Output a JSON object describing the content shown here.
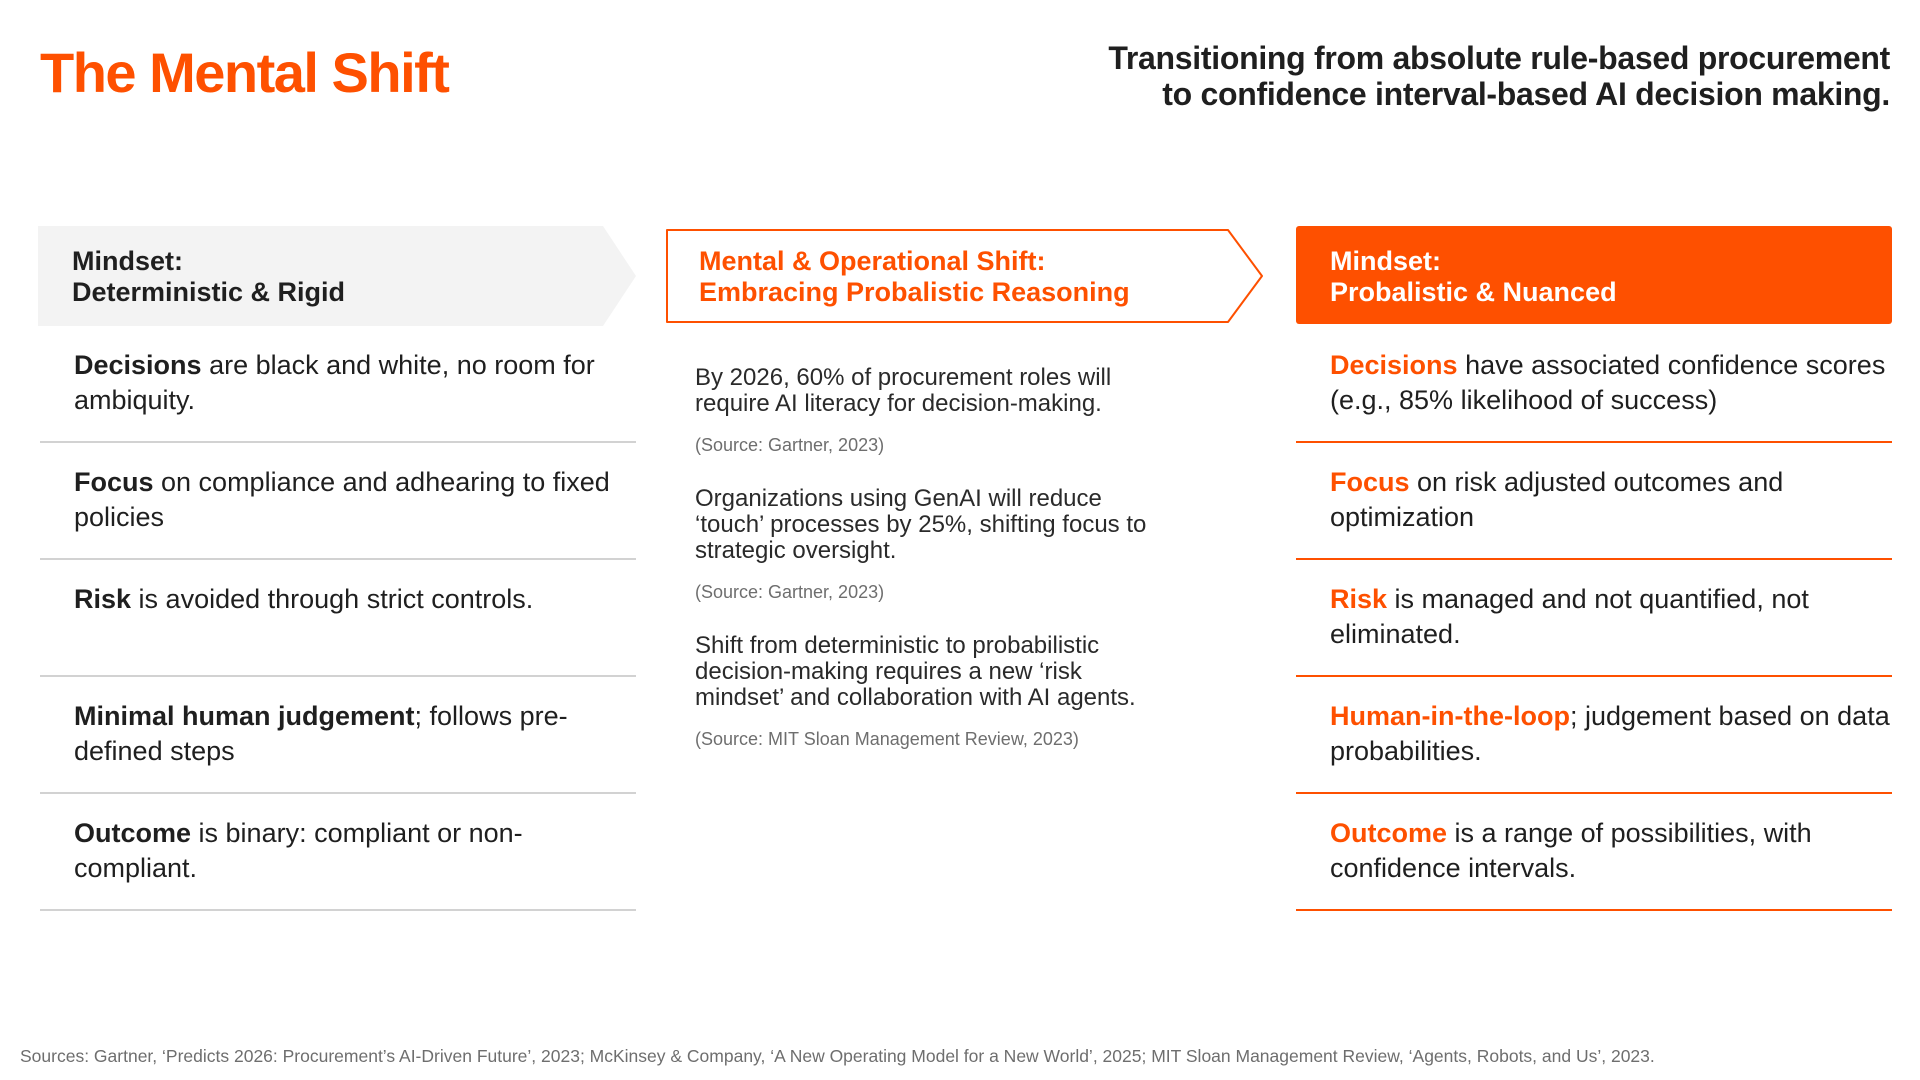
{
  "title": "The Mental Shift",
  "subtitle": {
    "line1": "Transitioning from absolute rule-based procurement",
    "line2": "to confidence interval-based AI decision making."
  },
  "colors": {
    "accent": "#fe5000",
    "neutral_fill": "#f3f3f3",
    "divider": "#d2d2d2"
  },
  "left": {
    "header_line1": "Mindset:",
    "header_line2": "Deterministic & Rigid",
    "rows": [
      {
        "keyword": "Decisions",
        "text": " are black and white, no room for ambiquity."
      },
      {
        "keyword": "Focus",
        "text": " on compliance and adhearing to fixed policies"
      },
      {
        "keyword": "Risk",
        "text": " is avoided through strict controls."
      },
      {
        "keyword": "Minimal human judgement",
        "text": "; follows pre-defined steps"
      },
      {
        "keyword": "Outcome",
        "text": " is binary: compliant or non-compliant."
      }
    ]
  },
  "middle": {
    "header_line1": "Mental & Operational Shift:",
    "header_line2": "Embracing Probalistic Reasoning",
    "stats": [
      {
        "text": "By 2026, 60% of procurement roles will require AI literacy for decision-making.",
        "source": "(Source: Gartner, 2023)"
      },
      {
        "text": "Organizations using GenAI will reduce ‘touch’ processes by 25%, shifting focus to strategic oversight.",
        "source": "(Source: Gartner, 2023)"
      },
      {
        "text": "Shift from deterministic to probabilistic decision-making requires a new ‘risk mindset’ and collaboration with AI agents.",
        "source": "(Source: MIT Sloan Management Review, 2023)"
      }
    ]
  },
  "right": {
    "header_line1": "Mindset:",
    "header_line2": "Probalistic & Nuanced",
    "rows": [
      {
        "keyword": "Decisions",
        "text": " have associated confidence scores (e.g., 85% likelihood of success)"
      },
      {
        "keyword": "Focus",
        "text": " on risk adjusted outcomes and optimization"
      },
      {
        "keyword": "Risk",
        "text": " is managed and not quantified, not eliminated."
      },
      {
        "keyword": "Human-in-the-loop",
        "text": "; judgement based on data probabilities."
      },
      {
        "keyword": "Outcome",
        "text": " is a range of possibilities, with confidence intervals."
      }
    ]
  },
  "footer": "Sources: Gartner, ‘Predicts 2026: Procurement’s AI-Driven Future’, 2023; McKinsey & Company, ‘A New Operating Model for a New World’, 2025; MIT Sloan Management Review, ‘Agents, Robots, and Us’, 2023."
}
